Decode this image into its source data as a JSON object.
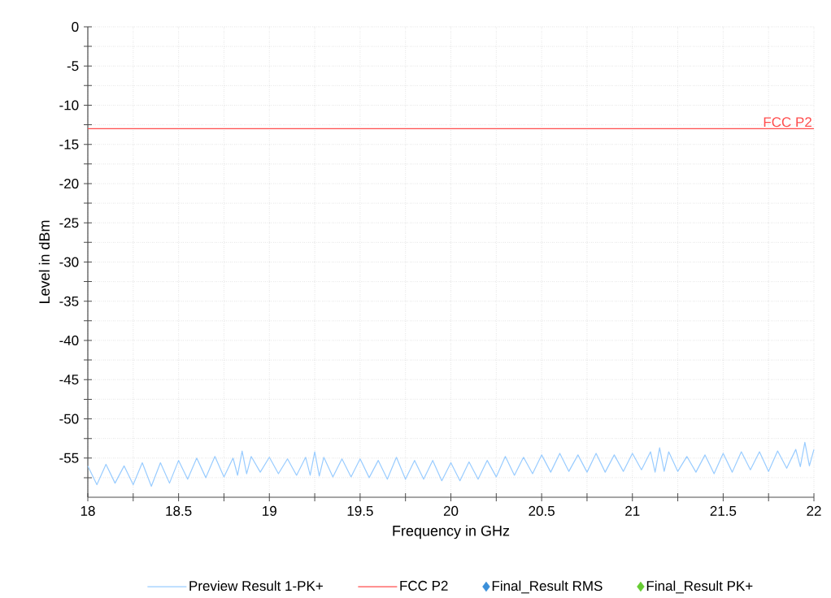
{
  "chart_data": {
    "type": "line",
    "xlabel": "Frequency in GHz",
    "ylabel": "Level in dBm",
    "xlim": [
      18,
      22
    ],
    "ylim": [
      -60,
      0
    ],
    "xticks": [
      18,
      {
        "value": 18.25,
        "label": null
      },
      18.5,
      {
        "value": 18.75,
        "label": null
      },
      19,
      {
        "value": 19.25,
        "label": null
      },
      19.5,
      {
        "value": 19.75,
        "label": null
      },
      20,
      {
        "value": 20.25,
        "label": null
      },
      20.5,
      {
        "value": 20.75,
        "label": null
      },
      21,
      {
        "value": 21.25,
        "label": null
      },
      21.5,
      {
        "value": 21.75,
        "label": null
      },
      22
    ],
    "yticks": [
      {
        "value": -57.5,
        "label": null
      },
      -55,
      {
        "value": -52.5,
        "label": null
      },
      -50,
      {
        "value": -47.5,
        "label": null
      },
      -45,
      {
        "value": -42.5,
        "label": null
      },
      -40,
      {
        "value": -37.5,
        "label": null
      },
      -35,
      {
        "value": -32.5,
        "label": null
      },
      -30,
      {
        "value": -27.5,
        "label": null
      },
      -25,
      {
        "value": -22.5,
        "label": null
      },
      -20,
      {
        "value": -17.5,
        "label": null
      },
      -15,
      {
        "value": -12.5,
        "label": null
      },
      -10,
      {
        "value": -7.5,
        "label": null
      },
      -5,
      {
        "value": -2.5,
        "label": null
      },
      0
    ],
    "grid": true,
    "legend": "bottom",
    "line_style": "solid",
    "series": [
      {
        "name": "Preview Result 1-PK+",
        "color": "#99ccff",
        "x": [
          18.0,
          18.05,
          18.1,
          18.15,
          18.2,
          18.25,
          18.3,
          18.35,
          18.4,
          18.45,
          18.5,
          18.55,
          18.6,
          18.65,
          18.7,
          18.75,
          18.8,
          18.825,
          18.85,
          18.875,
          18.9,
          18.95,
          19.0,
          19.05,
          19.1,
          19.15,
          19.2,
          19.225,
          19.25,
          19.275,
          19.3,
          19.35,
          19.4,
          19.45,
          19.5,
          19.55,
          19.6,
          19.65,
          19.7,
          19.75,
          19.8,
          19.85,
          19.9,
          19.95,
          20.0,
          20.05,
          20.1,
          20.15,
          20.2,
          20.25,
          20.3,
          20.35,
          20.4,
          20.45,
          20.5,
          20.55,
          20.6,
          20.65,
          20.7,
          20.75,
          20.8,
          20.85,
          20.9,
          20.95,
          21.0,
          21.05,
          21.1,
          21.125,
          21.15,
          21.175,
          21.2,
          21.25,
          21.3,
          21.35,
          21.4,
          21.45,
          21.5,
          21.55,
          21.6,
          21.65,
          21.7,
          21.75,
          21.8,
          21.85,
          21.9,
          21.925,
          21.95,
          21.975,
          22.0
        ],
        "values": [
          -56.0,
          -58.4,
          -55.8,
          -58.2,
          -56.0,
          -58.4,
          -55.6,
          -58.6,
          -55.6,
          -58.2,
          -55.3,
          -57.7,
          -55.0,
          -57.5,
          -54.8,
          -57.4,
          -55.0,
          -57.2,
          -54.1,
          -57.0,
          -54.8,
          -56.8,
          -54.9,
          -57.0,
          -55.1,
          -57.2,
          -54.9,
          -57.2,
          -54.2,
          -57.3,
          -54.9,
          -57.4,
          -55.1,
          -57.4,
          -55.1,
          -57.5,
          -55.3,
          -57.7,
          -54.9,
          -57.7,
          -55.3,
          -57.7,
          -55.3,
          -57.9,
          -55.6,
          -57.9,
          -55.5,
          -57.7,
          -55.3,
          -57.4,
          -54.8,
          -57.2,
          -54.9,
          -57.0,
          -54.6,
          -56.8,
          -54.4,
          -56.7,
          -54.6,
          -56.8,
          -54.4,
          -56.8,
          -54.6,
          -56.7,
          -54.4,
          -56.5,
          -54.2,
          -56.8,
          -53.7,
          -56.7,
          -54.2,
          -56.7,
          -54.8,
          -56.8,
          -54.6,
          -57.0,
          -54.4,
          -56.8,
          -54.2,
          -56.5,
          -54.2,
          -56.7,
          -54.1,
          -56.3,
          -53.9,
          -56.1,
          -53.0,
          -56.0,
          -53.9
        ]
      },
      {
        "name": "FCC P2",
        "color": "#ff4d4d",
        "x": [
          18,
          22
        ],
        "values": [
          -13,
          -13
        ]
      },
      {
        "name": "Final_Result RMS",
        "type": "scatter",
        "marker": "diamond",
        "color": "#3b8fd9"
      },
      {
        "name": "Final_Result PK+",
        "type": "scatter",
        "marker": "diamond",
        "color": "#66cc33"
      }
    ],
    "annotations": [
      {
        "text": "FCC P2",
        "x": 22,
        "y": -13
      }
    ]
  }
}
